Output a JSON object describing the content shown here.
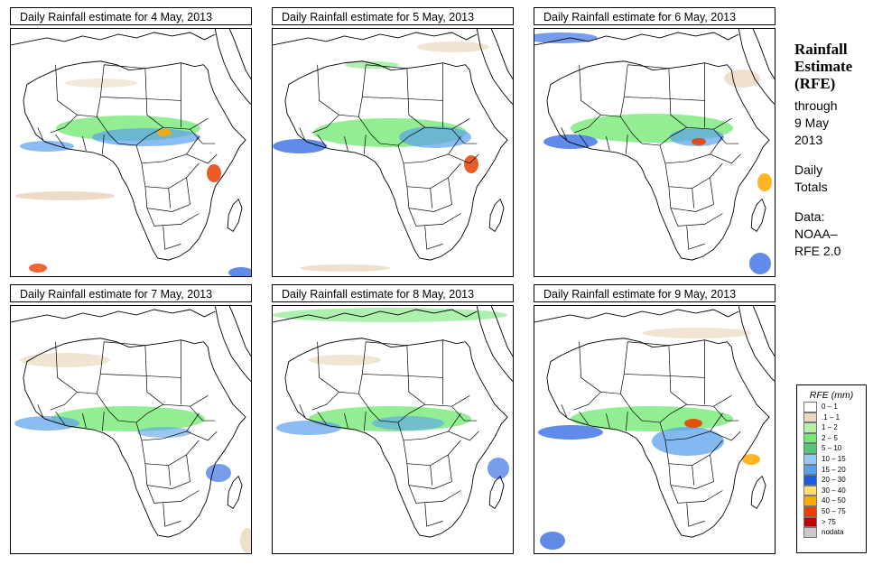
{
  "panels": [
    {
      "title": "Daily Rainfall estimate for  4 May, 2013"
    },
    {
      "title": "Daily Rainfall estimate for  5 May, 2013"
    },
    {
      "title": "Daily Rainfall estimate for  6 May, 2013"
    },
    {
      "title": "Daily Rainfall estimate for  7 May, 2013"
    },
    {
      "title": "Daily Rainfall estimate for  8 May, 2013"
    },
    {
      "title": "Daily Rainfall estimate for  9 May, 2013"
    }
  ],
  "sidebar": {
    "title_line1": "Rainfall",
    "title_line2": "Estimate",
    "title_line3": "(RFE)",
    "through": "through",
    "date_line1": "9 May",
    "date_line2": "2013",
    "totals_line1": "Daily",
    "totals_line2": "Totals",
    "data_line1": "Data:",
    "data_line2": "NOAA–",
    "data_line3": "RFE 2.0"
  },
  "legend": {
    "title": "RFE (mm)",
    "items": [
      {
        "label": "0 – 1",
        "color": "#ffffff"
      },
      {
        "label": ".1 – 1",
        "color": "#ead8c0"
      },
      {
        "label": "1 – 2",
        "color": "#b8f0a8"
      },
      {
        "label": "2 – 5",
        "color": "#78e878"
      },
      {
        "label": "5 – 10",
        "color": "#50c878"
      },
      {
        "label": "10 – 15",
        "color": "#98c8f0"
      },
      {
        "label": "15 – 20",
        "color": "#5aa0ec"
      },
      {
        "label": "20 – 30",
        "color": "#1e5ae0"
      },
      {
        "label": "30 – 40",
        "color": "#ffe070"
      },
      {
        "label": "40 – 50",
        "color": "#ffa800"
      },
      {
        "label": "50 – 75",
        "color": "#e84000"
      },
      {
        "label": "> 75",
        "color": "#c00000"
      },
      {
        "label": "nodata",
        "color": "#c8c8c8"
      }
    ]
  }
}
